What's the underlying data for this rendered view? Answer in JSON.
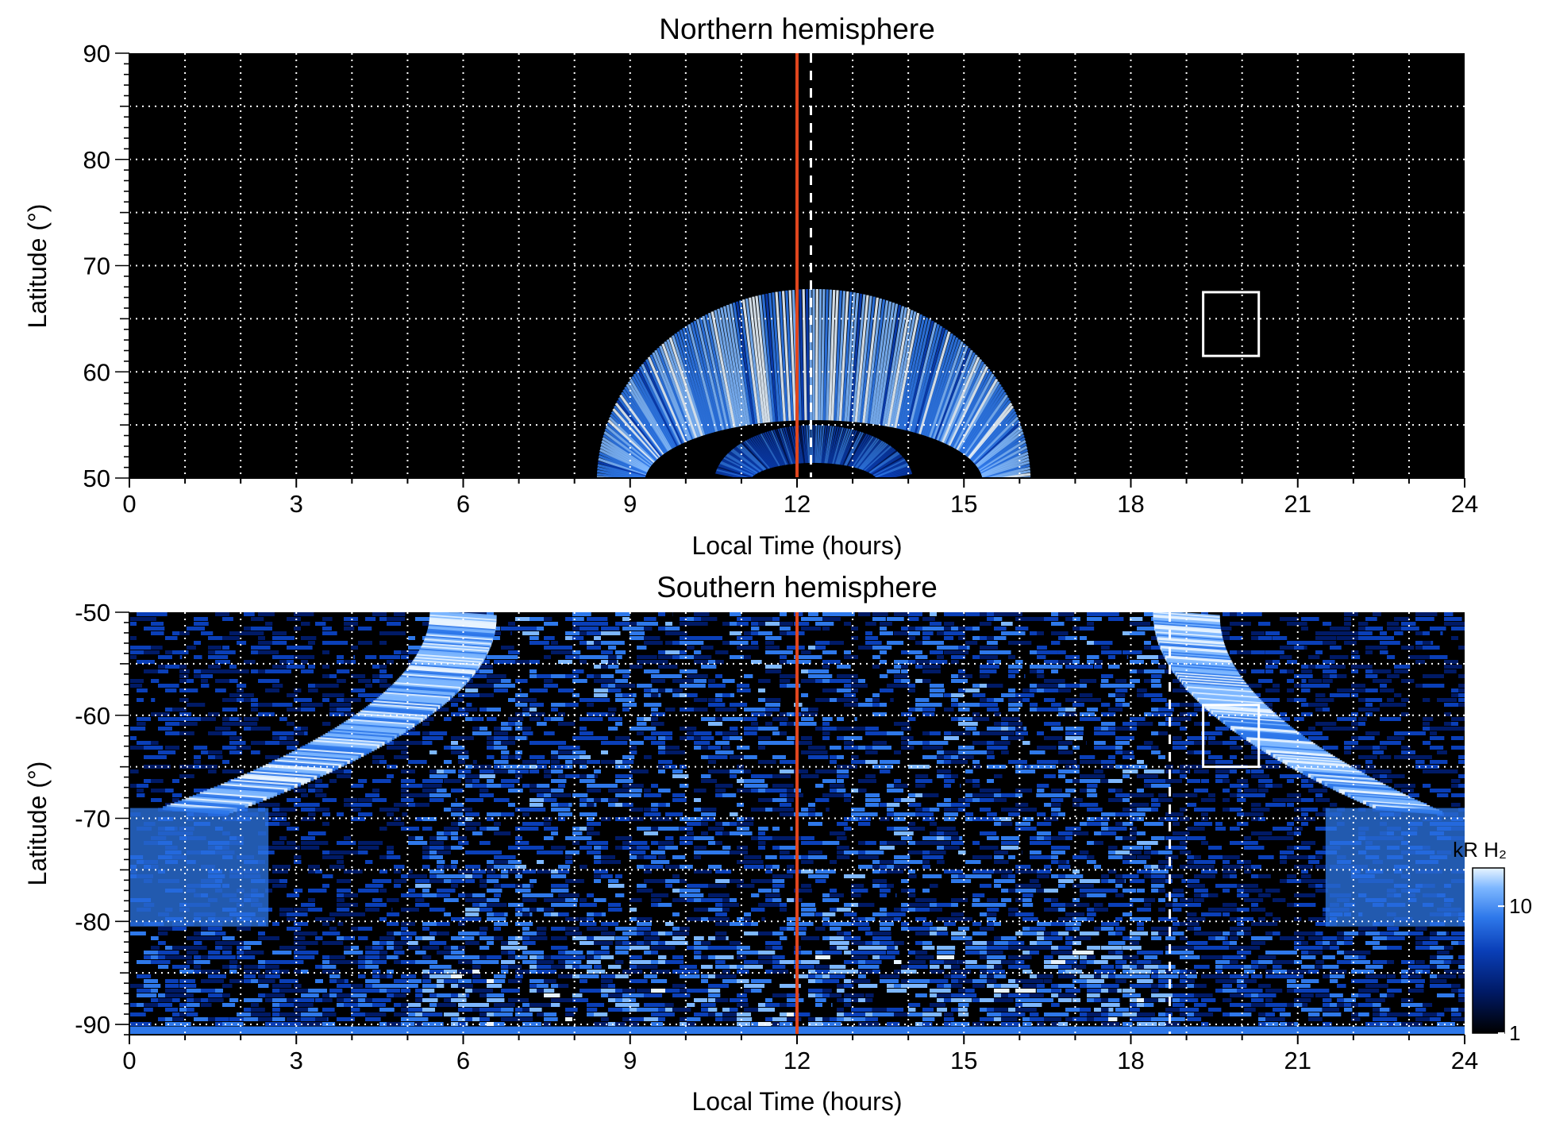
{
  "colors": {
    "background": "#000000",
    "meridian_line": "#e0461e",
    "grid": "#ffffff",
    "emission_ramp": [
      "#000000",
      "#001a66",
      "#0a3fb8",
      "#2e78ea",
      "#7db7ff",
      "#e8f4ff"
    ]
  },
  "chart_data": [
    {
      "type": "heatmap",
      "title": "Northern hemisphere",
      "xlabel": "Local Time (hours)",
      "ylabel": "Latitude (°)",
      "xlim": [
        0,
        24
      ],
      "ylim": [
        50,
        90
      ],
      "xticks": [
        "0",
        "3",
        "6",
        "9",
        "12",
        "15",
        "18",
        "21",
        "24"
      ],
      "yticks": [
        "50",
        "60",
        "70",
        "80",
        "90"
      ],
      "grid": true,
      "grid_x_step_hours": 1,
      "grid_y_step_deg": 5,
      "noon_line_lt": 12,
      "dashed_line_lt": 12.25,
      "box": {
        "lt": [
          19.3,
          20.3
        ],
        "lat": [
          61.5,
          67.5
        ]
      },
      "auroral_oval": {
        "center_lt": 12.3,
        "lt_halfwidth": 3.9,
        "lat_inner": 51,
        "lat_outer": 67.8,
        "ring_width_deg": 6.5
      }
    },
    {
      "type": "heatmap",
      "title": "Southern hemisphere",
      "xlabel": "Local Time (hours)",
      "ylabel": "Latitude (°)",
      "xlim": [
        0,
        24
      ],
      "ylim": [
        -91,
        -50
      ],
      "xticks": [
        "0",
        "3",
        "6",
        "9",
        "12",
        "15",
        "18",
        "21",
        "24"
      ],
      "yticks": [
        "-50",
        "-60",
        "-70",
        "-80",
        "-90"
      ],
      "grid": true,
      "grid_x_step_hours": 1,
      "grid_y_step_deg": 5,
      "noon_line_lt": 12,
      "dashed_line_lt": 18.7,
      "box": {
        "lt": [
          19.3,
          20.3
        ],
        "lat": [
          -65,
          -59
        ]
      },
      "auroral_arcs": [
        {
          "center_lt": 0,
          "radius_lt": 6.0,
          "band_lat": [
            -80.5,
            -69
          ],
          "width_lt": 1.2
        },
        {
          "center_lt": 24,
          "radius_lt": 5.0,
          "band_lat": [
            -80.5,
            -69
          ],
          "width_lt": 1.2
        }
      ],
      "colorbar": {
        "label": "kR H₂",
        "ticks": [
          "1",
          "10"
        ],
        "scale": "log",
        "range": [
          1,
          20
        ]
      }
    }
  ]
}
